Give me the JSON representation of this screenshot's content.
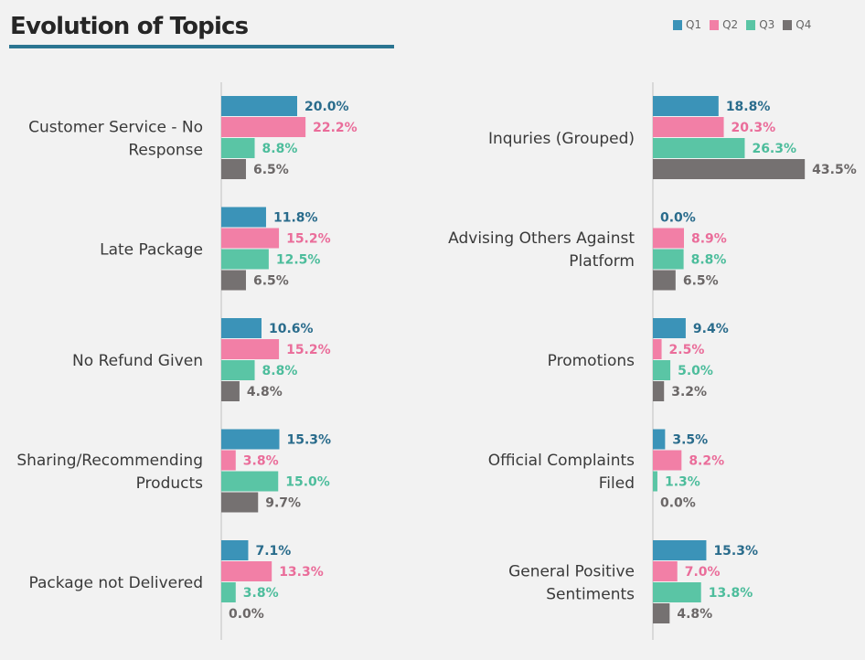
{
  "chart_data": [
    {
      "type": "bar",
      "orientation": "horizontal",
      "title": "Evolution of Topics",
      "categories": [
        "Customer Service - No Response",
        "Late Package",
        "No Refund Given",
        "Sharing/Recommending Products",
        "Package not Delivered"
      ],
      "series": [
        {
          "name": "Q1",
          "values": [
            20.0,
            11.8,
            10.6,
            15.3,
            7.1
          ]
        },
        {
          "name": "Q2",
          "values": [
            22.2,
            15.2,
            15.2,
            3.8,
            13.3
          ]
        },
        {
          "name": "Q3",
          "values": [
            8.8,
            12.5,
            8.8,
            15.0,
            3.8
          ]
        },
        {
          "name": "Q4",
          "values": [
            6.5,
            6.5,
            4.8,
            9.7,
            0.0
          ]
        }
      ],
      "value_format": "percent",
      "grid": false
    },
    {
      "type": "bar",
      "orientation": "horizontal",
      "categories": [
        "Inquries (Grouped)",
        "Advising Others Against Platform",
        "Promotions",
        "Official Complaints Filed",
        "General Positive Sentiments"
      ],
      "series": [
        {
          "name": "Q1",
          "values": [
            18.8,
            0.0,
            9.4,
            3.5,
            15.3
          ]
        },
        {
          "name": "Q2",
          "values": [
            20.3,
            8.9,
            2.5,
            8.2,
            7.0
          ]
        },
        {
          "name": "Q3",
          "values": [
            26.3,
            8.8,
            5.0,
            1.3,
            13.8
          ]
        },
        {
          "name": "Q4",
          "values": [
            43.5,
            6.5,
            3.2,
            0.0,
            4.8
          ]
        }
      ],
      "value_format": "percent",
      "grid": false
    }
  ],
  "title": "Evolution of Topics",
  "legend": {
    "position": "top-right",
    "items": [
      "Q1",
      "Q2",
      "Q3",
      "Q4"
    ]
  },
  "colors": {
    "bars": [
      "#3b93b8",
      "#f27fa6",
      "#5ac5a5",
      "#757171"
    ],
    "labels": [
      "#2a6c8c",
      "#ea6d9a",
      "#4dbd9c",
      "#6b6767"
    ],
    "title_underline": "#2b7591"
  }
}
